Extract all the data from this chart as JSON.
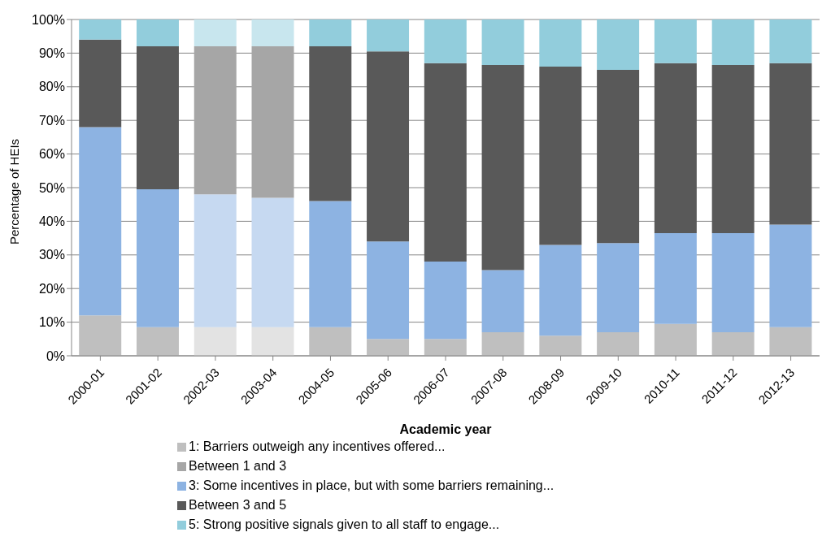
{
  "chart_data": {
    "type": "bar",
    "stacked": true,
    "xlabel": "Academic year",
    "ylabel": "Percentage of HEIs",
    "categories": [
      "2000-01",
      "2001-02",
      "2002-03",
      "2003-04",
      "2004-05",
      "2005-06",
      "2006-07",
      "2007-08",
      "2008-09",
      "2009-10",
      "2010-11",
      "2011-12",
      "2012-13"
    ],
    "series": [
      {
        "name": "1: Barriers outweigh any incentives offered...",
        "color": "#bfbfbf",
        "colors": [
          "#bfbfbf",
          "#bfbfbf",
          "#e3e3e3",
          "#e3e3e3",
          "#bfbfbf",
          "#bfbfbf",
          "#bfbfbf",
          "#bfbfbf",
          "#bfbfbf",
          "#bfbfbf",
          "#bfbfbf",
          "#bfbfbf",
          "#bfbfbf"
        ],
        "values": [
          12,
          8.5,
          8.5,
          8.5,
          8.5,
          5,
          5,
          7,
          6,
          7,
          9.5,
          7,
          8.5
        ]
      },
      {
        "name": "Between 1 and 3",
        "color": "#a6a6a6",
        "values": [
          null,
          null,
          null,
          null,
          null,
          null,
          null,
          null,
          null,
          null,
          null,
          null,
          null
        ]
      },
      {
        "name": "3: Some incentives in place, but with some barriers remaining...",
        "color": "#8db3e2",
        "colors": [
          "#8db3e2",
          "#8db3e2",
          "#c6d9f1",
          "#c6d9f1",
          "#8db3e2",
          "#8db3e2",
          "#8db3e2",
          "#8db3e2",
          "#8db3e2",
          "#8db3e2",
          "#8db3e2",
          "#8db3e2",
          "#8db3e2"
        ],
        "values": [
          56,
          41,
          39.5,
          38.5,
          37.5,
          29,
          23,
          18.5,
          27,
          26.5,
          27,
          29.5,
          30.5
        ]
      },
      {
        "name": "Between 3 and 5",
        "color": "#595959",
        "colors": [
          "#595959",
          "#595959",
          "#a6a6a6",
          "#a6a6a6",
          "#595959",
          "#595959",
          "#595959",
          "#595959",
          "#595959",
          "#595959",
          "#595959",
          "#595959",
          "#595959"
        ],
        "values": [
          26,
          42.5,
          44,
          45,
          46,
          56.5,
          59,
          61,
          53,
          51.5,
          50.5,
          50,
          48
        ]
      },
      {
        "name": "5: Strong positive signals given to all  staff to engage...",
        "color": "#92cddc",
        "colors": [
          "#92cddc",
          "#92cddc",
          "#c8e6ee",
          "#c8e6ee",
          "#92cddc",
          "#92cddc",
          "#92cddc",
          "#92cddc",
          "#92cddc",
          "#92cddc",
          "#92cddc",
          "#92cddc",
          "#92cddc"
        ],
        "values": [
          6,
          8,
          8,
          8,
          8,
          9.5,
          13,
          13.5,
          14,
          15,
          13,
          13.5,
          13
        ]
      }
    ],
    "ylim": [
      0,
      100
    ],
    "yticks": [
      {
        "value": 0,
        "label": "0%"
      },
      {
        "value": 10,
        "label": "10%"
      },
      {
        "value": 20,
        "label": "20%"
      },
      {
        "value": 30,
        "label": "30%"
      },
      {
        "value": 40,
        "label": "40%"
      },
      {
        "value": 50,
        "label": "50%"
      },
      {
        "value": 60,
        "label": "60%"
      },
      {
        "value": 70,
        "label": "70%"
      },
      {
        "value": 80,
        "label": "80%"
      },
      {
        "value": 90,
        "label": "90%"
      },
      {
        "value": 100,
        "label": "100%"
      }
    ],
    "grid": "y",
    "legend": "bottom"
  }
}
